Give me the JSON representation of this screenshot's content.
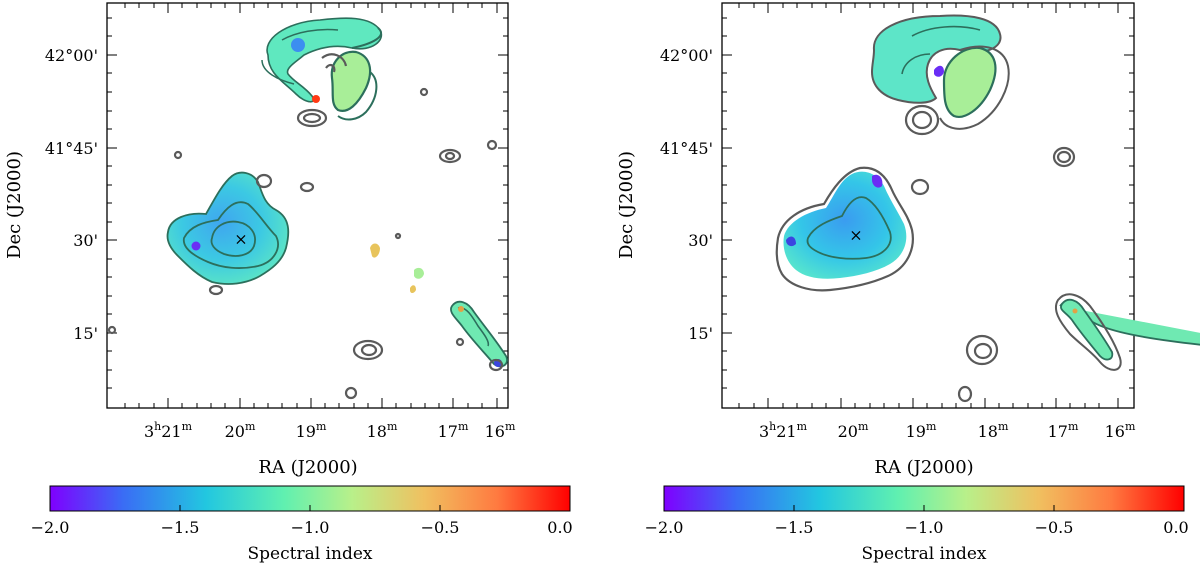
{
  "chart_data": [
    {
      "type": "heatmap",
      "panel": "left",
      "xlabel": "RA (J2000)",
      "ylabel": "Dec (J2000)",
      "x_ticks": [
        {
          "h": "3",
          "m": "21"
        },
        {
          "h": "",
          "m": "20"
        },
        {
          "h": "",
          "m": "19"
        },
        {
          "h": "",
          "m": "18"
        },
        {
          "h": "",
          "m": "17"
        },
        {
          "h": "",
          "m": "16"
        }
      ],
      "y_ticks": [
        "42°00'",
        "41°45'",
        "30'",
        "15'"
      ],
      "marker": "×",
      "colorbar": {
        "label": "Spectral index",
        "min": -2.0,
        "max": 0.0,
        "ticks": [
          "−2.0",
          "−1.5",
          "−1.0",
          "−0.5",
          "0.0"
        ]
      }
    },
    {
      "type": "heatmap",
      "panel": "right",
      "xlabel": "RA (J2000)",
      "ylabel": "Dec (J2000)",
      "x_ticks": [
        {
          "h": "3",
          "m": "21"
        },
        {
          "h": "",
          "m": "20"
        },
        {
          "h": "",
          "m": "19"
        },
        {
          "h": "",
          "m": "18"
        },
        {
          "h": "",
          "m": "17"
        },
        {
          "h": "",
          "m": "16"
        }
      ],
      "y_ticks": [
        "42°00'",
        "41°45'",
        "30'",
        "15'"
      ],
      "marker": "×",
      "colorbar": {
        "label": "Spectral index",
        "min": -2.0,
        "max": 0.0,
        "ticks": [
          "−2.0",
          "−1.5",
          "−1.0",
          "−0.5",
          "0.0"
        ]
      }
    }
  ],
  "colors": {
    "contour": "#5a5a5a",
    "colormap": [
      "#7f00ff",
      "#3a6cf5",
      "#22c7e0",
      "#60f0b0",
      "#b8f08a",
      "#f0c060",
      "#ff7a40",
      "#ff0000"
    ]
  }
}
